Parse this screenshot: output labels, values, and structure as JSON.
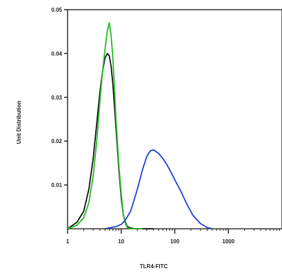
{
  "chart_data": {
    "type": "line",
    "xlabel": "TLR4-FITC",
    "ylabel": "Unit Distribution",
    "x_scale": "log",
    "xlim": [
      1,
      10000
    ],
    "ylim": [
      0,
      0.05
    ],
    "x_ticks": [
      1,
      10,
      100,
      1000
    ],
    "x_tick_labels": [
      "1",
      "10",
      "100",
      "1000"
    ],
    "y_ticks": [
      0.01,
      0.02,
      0.03,
      0.04,
      0.05
    ],
    "y_tick_labels": [
      "0.01",
      "0.02",
      "0.03",
      "0.04",
      "0.05"
    ],
    "grid": false,
    "series": [
      {
        "color": "#111111",
        "x": [
          1,
          1.5,
          2,
          2.5,
          3,
          3.5,
          4,
          4.5,
          5,
          5.5,
          6,
          6.5,
          7,
          7.5,
          8,
          9,
          10,
          11,
          12,
          13,
          15,
          18,
          25,
          40
        ],
        "y": [
          0,
          0.0015,
          0.004,
          0.009,
          0.016,
          0.024,
          0.031,
          0.036,
          0.039,
          0.04,
          0.0395,
          0.037,
          0.033,
          0.028,
          0.023,
          0.014,
          0.007,
          0.003,
          0.0015,
          0.0005,
          0.0002,
          0,
          0,
          0
        ]
      },
      {
        "color": "#22bb22",
        "x": [
          1,
          1.5,
          2,
          2.5,
          3,
          3.5,
          4,
          4.5,
          5,
          5.5,
          6,
          6.5,
          7,
          7.5,
          8,
          9,
          10,
          11,
          12,
          13,
          15,
          18,
          25
        ],
        "y": [
          0,
          0.0008,
          0.0025,
          0.006,
          0.012,
          0.02,
          0.029,
          0.036,
          0.041,
          0.045,
          0.047,
          0.044,
          0.039,
          0.032,
          0.025,
          0.015,
          0.008,
          0.003,
          0.0012,
          0.0003,
          0,
          0,
          0
        ]
      },
      {
        "color": "#1a3fd6",
        "x": [
          5,
          8,
          10,
          12,
          15,
          20,
          25,
          30,
          35,
          40,
          50,
          60,
          70,
          80,
          100,
          130,
          170,
          220,
          300,
          400,
          500
        ],
        "y": [
          0,
          0.0005,
          0.001,
          0.002,
          0.004,
          0.009,
          0.0135,
          0.0165,
          0.0178,
          0.018,
          0.0172,
          0.016,
          0.0148,
          0.0135,
          0.0112,
          0.0085,
          0.0055,
          0.003,
          0.0012,
          0.0003,
          0
        ]
      }
    ]
  }
}
